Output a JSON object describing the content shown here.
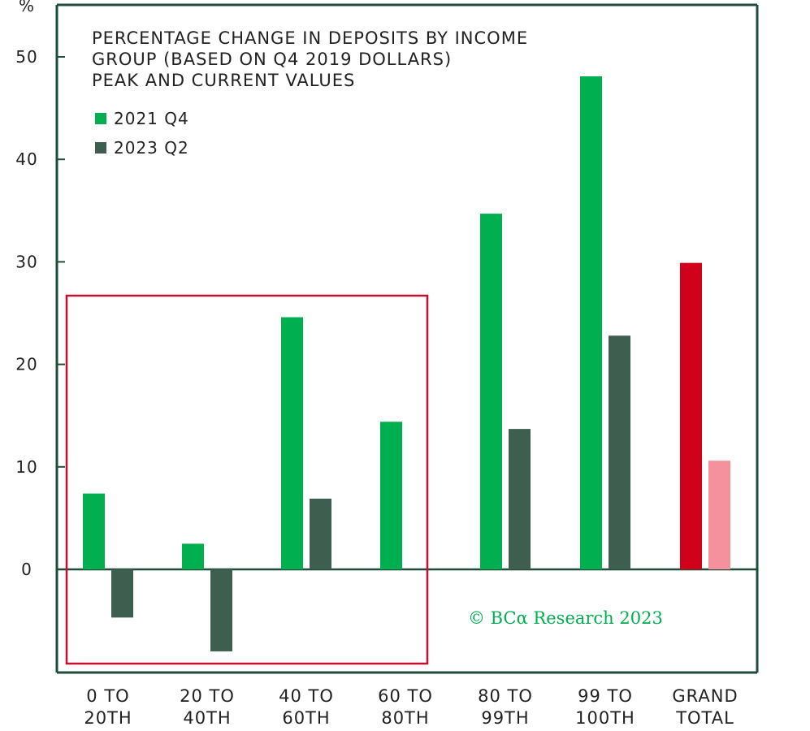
{
  "chart_data": {
    "type": "bar",
    "title_lines": [
      "PERCENTAGE CHANGE IN DEPOSITS BY INCOME",
      "GROUP (BASED ON Q4 2019 DOLLARS)",
      "PEAK AND CURRENT VALUES"
    ],
    "ylabel": "%",
    "ylim": [
      -10,
      55
    ],
    "yticks": [
      0,
      10,
      20,
      30,
      40,
      50
    ],
    "categories": [
      [
        "0 TO",
        "20TH"
      ],
      [
        "20 TO",
        "40TH"
      ],
      [
        "40 TO",
        "60TH"
      ],
      [
        "60 TO",
        "80TH"
      ],
      [
        "80 TO",
        "99TH"
      ],
      [
        "99 TO",
        "100TH"
      ],
      [
        "GRAND",
        "TOTAL"
      ]
    ],
    "series": [
      {
        "name": "2021 Q4",
        "values": [
          7.4,
          2.5,
          24.6,
          14.4,
          34.7,
          48.1,
          29.9
        ],
        "color": "#00b050"
      },
      {
        "name": "2023 Q2",
        "values": [
          -4.7,
          -8.0,
          6.9,
          null,
          13.7,
          22.8,
          10.6
        ],
        "color": "#3e5f4f"
      }
    ],
    "highlight": {
      "category_index": 6,
      "colors": [
        "#d0021b",
        "#f4919c"
      ]
    },
    "legend_position": "top-left",
    "grid": false,
    "annotation_box_categories": [
      0,
      3
    ],
    "annotation_box_color": "#c8102e",
    "copyright": "© BCα Research 2023",
    "copyright_color": "#00b050",
    "frame_color": "#1f4d3a"
  }
}
